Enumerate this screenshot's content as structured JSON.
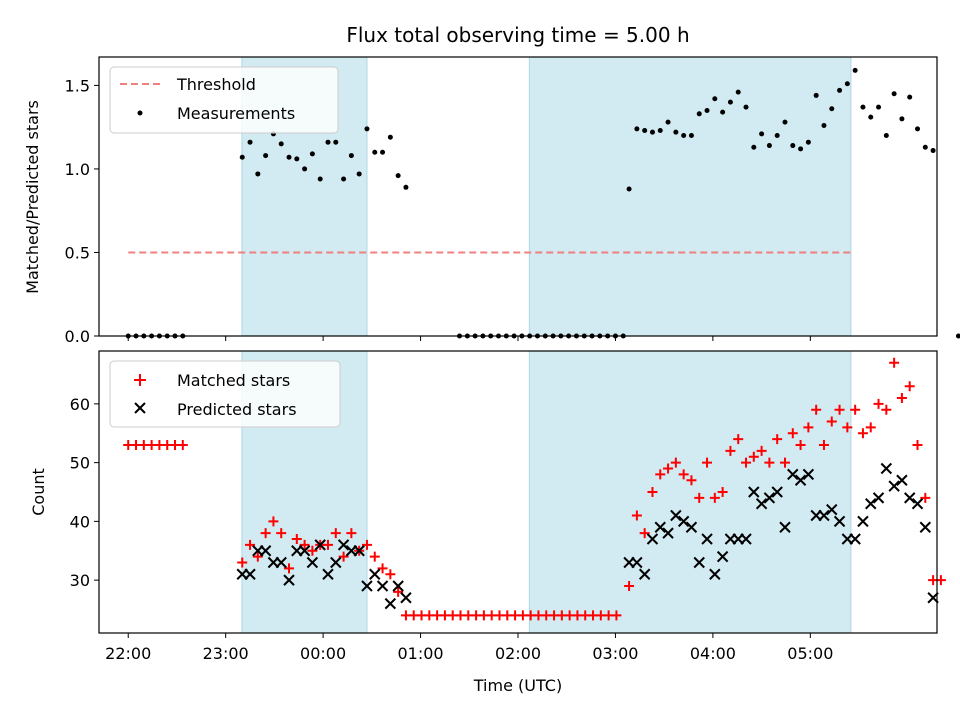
{
  "chart_data": [
    {
      "type": "scatter",
      "title": "Flux total observing time = 5.00 h",
      "ylabel": "Matched/Predicted stars",
      "xlabel": "",
      "x_unit": "hours after 22:00 UTC",
      "ylim": [
        0,
        1.67
      ],
      "yticks": [
        "0.0",
        "0.5",
        "1.0",
        "1.5"
      ],
      "shaded_intervals": [
        [
          "23:10",
          "00:27"
        ],
        [
          "02:07",
          "05:25"
        ]
      ],
      "shade_color": "#add8e6",
      "legend": {
        "position": "top-left",
        "entries": [
          "Threshold",
          "Measurements"
        ]
      },
      "threshold": {
        "name": "Threshold",
        "value": 0.5,
        "x_range": [
          "22:00",
          "05:27"
        ],
        "color": "#f08080",
        "style": "dashed"
      },
      "series": [
        {
          "name": "Measurements",
          "color": "#000000",
          "points": [
            [
              0.0,
              0
            ],
            [
              0.08,
              0
            ],
            [
              0.16,
              0
            ],
            [
              0.24,
              0
            ],
            [
              0.32,
              0
            ],
            [
              0.4,
              0
            ],
            [
              0.48,
              0
            ],
            [
              0.56,
              0
            ],
            [
              1.17,
              1.07
            ],
            [
              1.25,
              1.16
            ],
            [
              1.33,
              0.97
            ],
            [
              1.41,
              1.08
            ],
            [
              1.49,
              1.21
            ],
            [
              1.57,
              1.15
            ],
            [
              1.65,
              1.07
            ],
            [
              1.73,
              1.06
            ],
            [
              1.81,
              1.0
            ],
            [
              1.89,
              1.09
            ],
            [
              1.97,
              0.94
            ],
            [
              2.05,
              1.16
            ],
            [
              2.13,
              1.16
            ],
            [
              2.21,
              0.94
            ],
            [
              2.29,
              1.08
            ],
            [
              2.37,
              0.97
            ],
            [
              2.45,
              1.24
            ],
            [
              2.53,
              1.1
            ],
            [
              2.61,
              1.1
            ],
            [
              2.69,
              1.19
            ],
            [
              2.77,
              0.96
            ],
            [
              2.85,
              0.89
            ],
            [
              3.4,
              0
            ],
            [
              3.48,
              0
            ],
            [
              3.56,
              0
            ],
            [
              3.64,
              0
            ],
            [
              3.72,
              0
            ],
            [
              3.8,
              0
            ],
            [
              3.88,
              0
            ],
            [
              3.96,
              0
            ],
            [
              4.04,
              0
            ],
            [
              4.12,
              0
            ],
            [
              4.2,
              0
            ],
            [
              4.28,
              0
            ],
            [
              4.36,
              0
            ],
            [
              4.44,
              0
            ],
            [
              4.52,
              0
            ],
            [
              4.6,
              0
            ],
            [
              4.68,
              0
            ],
            [
              4.76,
              0
            ],
            [
              4.84,
              0
            ],
            [
              4.92,
              0
            ],
            [
              5.0,
              0
            ],
            [
              5.08,
              0
            ],
            [
              5.14,
              0.88
            ],
            [
              5.22,
              1.24
            ],
            [
              5.3,
              1.23
            ],
            [
              5.38,
              1.22
            ],
            [
              5.46,
              1.23
            ],
            [
              5.54,
              1.28
            ],
            [
              5.62,
              1.22
            ],
            [
              5.7,
              1.2
            ],
            [
              5.78,
              1.2
            ],
            [
              5.86,
              1.33
            ],
            [
              5.94,
              1.35
            ],
            [
              6.02,
              1.42
            ],
            [
              6.1,
              1.34
            ],
            [
              6.18,
              1.4
            ],
            [
              6.26,
              1.46
            ],
            [
              6.34,
              1.37
            ],
            [
              6.42,
              1.13
            ],
            [
              6.5,
              1.21
            ],
            [
              6.58,
              1.14
            ],
            [
              6.66,
              1.2
            ],
            [
              6.74,
              1.28
            ],
            [
              6.82,
              1.14
            ],
            [
              6.9,
              1.12
            ],
            [
              6.98,
              1.16
            ],
            [
              7.06,
              1.44
            ],
            [
              7.14,
              1.26
            ],
            [
              7.22,
              1.36
            ],
            [
              7.3,
              1.47
            ],
            [
              7.38,
              1.51
            ],
            [
              7.46,
              1.59
            ],
            [
              7.54,
              1.37
            ],
            [
              7.62,
              1.31
            ],
            [
              7.7,
              1.37
            ],
            [
              7.78,
              1.2
            ],
            [
              7.86,
              1.45
            ],
            [
              7.94,
              1.3
            ],
            [
              8.02,
              1.43
            ],
            [
              8.1,
              1.24
            ],
            [
              8.18,
              1.13
            ],
            [
              8.26,
              1.11
            ],
            [
              8.52,
              0
            ]
          ]
        }
      ]
    },
    {
      "type": "scatter",
      "title": "",
      "xlabel": "Time (UTC)",
      "ylabel": "Count",
      "x_unit": "hours after 22:00 UTC",
      "xlim": [
        -0.3,
        8.3
      ],
      "ylim": [
        21,
        69
      ],
      "yticks": [
        "30",
        "40",
        "50",
        "60"
      ],
      "xticks": [
        "22:00",
        "23:00",
        "00:00",
        "01:00",
        "02:00",
        "03:00",
        "04:00",
        "05:00"
      ],
      "shaded_intervals": [
        [
          "23:10",
          "00:27"
        ],
        [
          "02:07",
          "05:25"
        ]
      ],
      "shade_color": "#add8e6",
      "legend": {
        "position": "top-left",
        "entries": [
          "Matched stars",
          "Predicted stars"
        ]
      },
      "series": [
        {
          "name": "Matched stars",
          "marker": "plus",
          "color": "#ff0000",
          "points": [
            [
              0.0,
              53
            ],
            [
              0.08,
              53
            ],
            [
              0.16,
              53
            ],
            [
              0.24,
              53
            ],
            [
              0.32,
              53
            ],
            [
              0.4,
              53
            ],
            [
              0.48,
              53
            ],
            [
              0.56,
              53
            ],
            [
              1.17,
              33
            ],
            [
              1.25,
              36
            ],
            [
              1.33,
              34
            ],
            [
              1.41,
              38
            ],
            [
              1.49,
              40
            ],
            [
              1.57,
              38
            ],
            [
              1.65,
              32
            ],
            [
              1.73,
              37
            ],
            [
              1.81,
              36
            ],
            [
              1.89,
              35
            ],
            [
              1.97,
              36
            ],
            [
              2.05,
              36
            ],
            [
              2.13,
              38
            ],
            [
              2.21,
              34
            ],
            [
              2.29,
              38
            ],
            [
              2.37,
              35
            ],
            [
              2.45,
              36
            ],
            [
              2.53,
              34
            ],
            [
              2.61,
              32
            ],
            [
              2.69,
              31
            ],
            [
              2.77,
              28
            ],
            [
              2.85,
              24
            ],
            [
              2.93,
              24
            ],
            [
              3.01,
              24
            ],
            [
              3.09,
              24
            ],
            [
              3.17,
              24
            ],
            [
              3.25,
              24
            ],
            [
              3.33,
              24
            ],
            [
              3.41,
              24
            ],
            [
              3.49,
              24
            ],
            [
              3.57,
              24
            ],
            [
              3.65,
              24
            ],
            [
              3.73,
              24
            ],
            [
              3.81,
              24
            ],
            [
              3.89,
              24
            ],
            [
              3.97,
              24
            ],
            [
              4.05,
              24
            ],
            [
              4.13,
              24
            ],
            [
              4.21,
              24
            ],
            [
              4.29,
              24
            ],
            [
              4.37,
              24
            ],
            [
              4.45,
              24
            ],
            [
              4.53,
              24
            ],
            [
              4.61,
              24
            ],
            [
              4.69,
              24
            ],
            [
              4.77,
              24
            ],
            [
              4.85,
              24
            ],
            [
              4.93,
              24
            ],
            [
              5.01,
              24
            ],
            [
              5.14,
              29
            ],
            [
              5.22,
              41
            ],
            [
              5.3,
              38
            ],
            [
              5.38,
              45
            ],
            [
              5.46,
              48
            ],
            [
              5.54,
              49
            ],
            [
              5.62,
              50
            ],
            [
              5.7,
              48
            ],
            [
              5.78,
              47
            ],
            [
              5.86,
              44
            ],
            [
              5.94,
              50
            ],
            [
              6.02,
              44
            ],
            [
              6.1,
              45
            ],
            [
              6.18,
              52
            ],
            [
              6.26,
              54
            ],
            [
              6.34,
              50
            ],
            [
              6.42,
              51
            ],
            [
              6.5,
              52
            ],
            [
              6.58,
              50
            ],
            [
              6.66,
              54
            ],
            [
              6.74,
              50
            ],
            [
              6.82,
              55
            ],
            [
              6.9,
              53
            ],
            [
              6.98,
              56
            ],
            [
              7.06,
              59
            ],
            [
              7.14,
              53
            ],
            [
              7.22,
              57
            ],
            [
              7.3,
              59
            ],
            [
              7.38,
              56
            ],
            [
              7.46,
              59
            ],
            [
              7.54,
              55
            ],
            [
              7.62,
              56
            ],
            [
              7.7,
              60
            ],
            [
              7.78,
              59
            ],
            [
              7.86,
              67
            ],
            [
              7.94,
              61
            ],
            [
              8.02,
              63
            ],
            [
              8.1,
              53
            ],
            [
              8.18,
              44
            ],
            [
              8.26,
              30
            ],
            [
              8.34,
              30
            ]
          ]
        },
        {
          "name": "Predicted stars",
          "marker": "x",
          "color": "#000000",
          "points": [
            [
              1.17,
              31
            ],
            [
              1.25,
              31
            ],
            [
              1.33,
              35
            ],
            [
              1.41,
              35
            ],
            [
              1.49,
              33
            ],
            [
              1.57,
              33
            ],
            [
              1.65,
              30
            ],
            [
              1.73,
              35
            ],
            [
              1.81,
              35
            ],
            [
              1.89,
              33
            ],
            [
              1.97,
              36
            ],
            [
              2.05,
              31
            ],
            [
              2.13,
              33
            ],
            [
              2.21,
              36
            ],
            [
              2.29,
              35
            ],
            [
              2.37,
              35
            ],
            [
              2.45,
              29
            ],
            [
              2.53,
              31
            ],
            [
              2.61,
              29
            ],
            [
              2.69,
              26
            ],
            [
              2.77,
              29
            ],
            [
              2.85,
              27
            ],
            [
              5.14,
              33
            ],
            [
              5.22,
              33
            ],
            [
              5.3,
              31
            ],
            [
              5.38,
              37
            ],
            [
              5.46,
              39
            ],
            [
              5.54,
              38
            ],
            [
              5.62,
              41
            ],
            [
              5.7,
              40
            ],
            [
              5.78,
              39
            ],
            [
              5.86,
              33
            ],
            [
              5.94,
              37
            ],
            [
              6.02,
              31
            ],
            [
              6.1,
              34
            ],
            [
              6.18,
              37
            ],
            [
              6.26,
              37
            ],
            [
              6.34,
              37
            ],
            [
              6.42,
              45
            ],
            [
              6.5,
              43
            ],
            [
              6.58,
              44
            ],
            [
              6.66,
              45
            ],
            [
              6.74,
              39
            ],
            [
              6.82,
              48
            ],
            [
              6.9,
              47
            ],
            [
              6.98,
              48
            ],
            [
              7.06,
              41
            ],
            [
              7.14,
              41
            ],
            [
              7.22,
              42
            ],
            [
              7.3,
              40
            ],
            [
              7.38,
              37
            ],
            [
              7.46,
              37
            ],
            [
              7.54,
              40
            ],
            [
              7.62,
              43
            ],
            [
              7.7,
              44
            ],
            [
              7.78,
              49
            ],
            [
              7.86,
              46
            ],
            [
              7.94,
              47
            ],
            [
              8.02,
              44
            ],
            [
              8.1,
              43
            ],
            [
              8.18,
              39
            ],
            [
              8.26,
              27
            ]
          ]
        }
      ]
    }
  ]
}
